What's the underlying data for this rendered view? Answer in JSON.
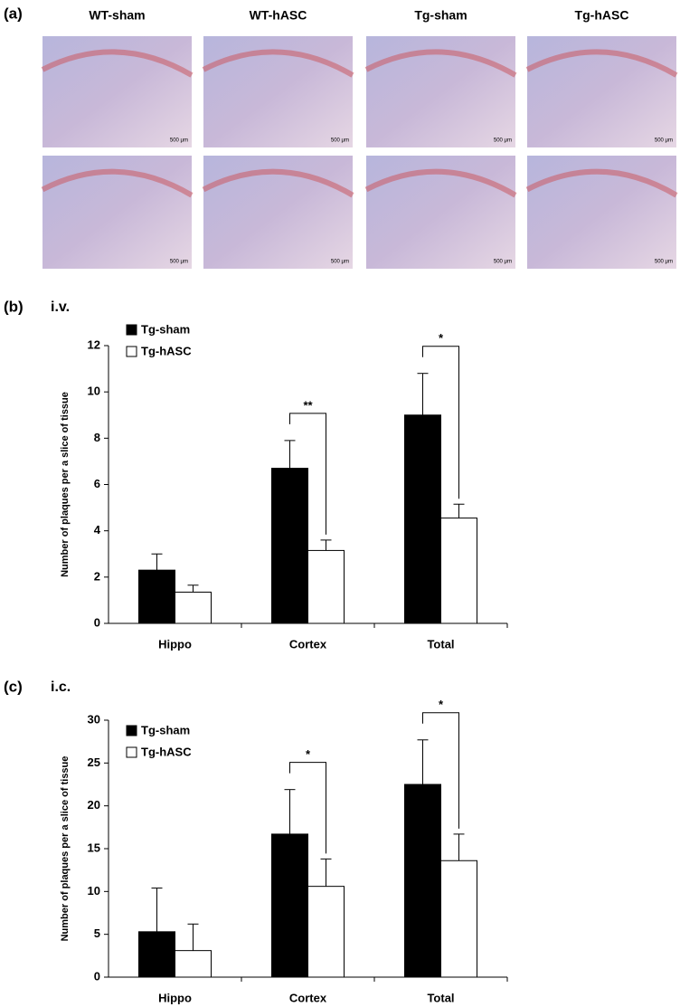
{
  "figure": {
    "panel_labels": [
      "(a)",
      "(b)",
      "(c)"
    ],
    "image_columns": [
      "WT-sham",
      "WT-hASC",
      "Tg-sham",
      "Tg-hASC"
    ],
    "scale_bar": "500 μm"
  },
  "chart_data": [
    {
      "type": "bar",
      "subtitle": "i.v.",
      "y_label": "Number of plaques per a slice of tissue",
      "categories": [
        "Hippo",
        "Cortex",
        "Total"
      ],
      "series": [
        {
          "name": "Tg-sham",
          "color": "#000000",
          "values": [
            2.3,
            6.7,
            9.0
          ],
          "errors": [
            0.7,
            1.2,
            1.8
          ]
        },
        {
          "name": "Tg-hASC",
          "color": "#ffffff",
          "values": [
            1.35,
            3.15,
            4.55
          ],
          "errors": [
            0.3,
            0.45,
            0.6
          ]
        }
      ],
      "ylim": [
        0,
        12
      ],
      "yticks": [
        0,
        2,
        4,
        6,
        8,
        10,
        12
      ],
      "grid": false,
      "legend": "top-left",
      "annotations": [
        {
          "text": "**",
          "category": "Cortex"
        },
        {
          "text": "*",
          "category": "Total"
        }
      ]
    },
    {
      "type": "bar",
      "subtitle": "i.c.",
      "y_label": "Number of plaques per a slice of tissue",
      "categories": [
        "Hippo",
        "Cortex",
        "Total"
      ],
      "series": [
        {
          "name": "Tg-sham",
          "color": "#000000",
          "values": [
            5.3,
            16.7,
            22.5
          ],
          "errors": [
            5.1,
            5.2,
            5.2
          ]
        },
        {
          "name": "Tg-hASC",
          "color": "#ffffff",
          "values": [
            3.1,
            10.6,
            13.6
          ],
          "errors": [
            3.1,
            3.2,
            3.1
          ]
        }
      ],
      "ylim": [
        0,
        30
      ],
      "yticks": [
        0,
        5,
        10,
        15,
        20,
        25,
        30
      ],
      "grid": false,
      "legend": "top-left",
      "annotations": [
        {
          "text": "*",
          "category": "Cortex"
        },
        {
          "text": "*",
          "category": "Total"
        }
      ]
    }
  ]
}
